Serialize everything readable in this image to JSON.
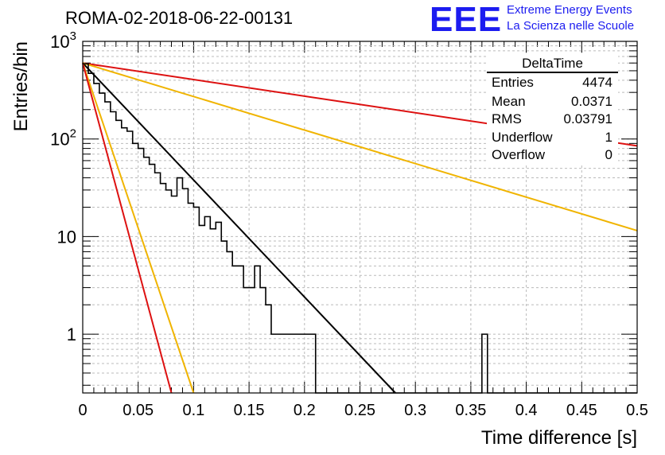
{
  "header": {
    "title": "ROMA-02-2018-06-22-00131",
    "logo_mark": "EEE",
    "logo_line1": "Extreme Energy Events",
    "logo_line2": "La Scienza nelle Scuole"
  },
  "stats_box": {
    "title": "DeltaTime",
    "rows": [
      {
        "key": "Entries",
        "value": "4474"
      },
      {
        "key": "Mean",
        "value": "0.0371"
      },
      {
        "key": "RMS",
        "value": "0.03791"
      },
      {
        "key": "Underflow",
        "value": "1"
      },
      {
        "key": "Overflow",
        "value": "0"
      }
    ]
  },
  "chart_data": {
    "type": "line",
    "title": "ROMA-02-2018-06-22-00131",
    "xlabel": "Time difference [s]",
    "ylabel": "Entries/bin",
    "xlim": [
      0,
      0.5
    ],
    "ylim": [
      0.25,
      1000
    ],
    "yscale": "log",
    "grid": true,
    "x_ticks": [
      "0",
      "0.05",
      "0.1",
      "0.15",
      "0.2",
      "0.25",
      "0.3",
      "0.35",
      "0.4",
      "0.45",
      "0.5"
    ],
    "y_ticks": [
      "1",
      "10",
      "10^2",
      "10^3"
    ],
    "histogram": {
      "name": "DeltaTime",
      "bin_width": 0.005,
      "color": "#000000",
      "counts": [
        590,
        470,
        370,
        295,
        240,
        190,
        155,
        130,
        120,
        90,
        80,
        65,
        55,
        45,
        35,
        30,
        26,
        40,
        31,
        22,
        20,
        13,
        16,
        12,
        14,
        9,
        7,
        5,
        5,
        3,
        3,
        5,
        3,
        2,
        1,
        1,
        1,
        1,
        1,
        1,
        1,
        1,
        0,
        0,
        0,
        0,
        0,
        0,
        0,
        0,
        0,
        0,
        0,
        0,
        0,
        0,
        0,
        0,
        0,
        0,
        0,
        0,
        0,
        0,
        0,
        0,
        0,
        0,
        0,
        0,
        0,
        0,
        1,
        0,
        0,
        0,
        0,
        0,
        0,
        0,
        0,
        0,
        0,
        0,
        0,
        0,
        0,
        0,
        0,
        0,
        0,
        0,
        0,
        0,
        0,
        0,
        0,
        0,
        0,
        0
      ]
    },
    "series": [
      {
        "color": "#000000",
        "x": [
          0,
          0.282
        ],
        "y": [
          600,
          0.25
        ]
      },
      {
        "color": "#dd1111",
        "x": [
          0,
          0.5
        ],
        "y": [
          600,
          85
        ]
      },
      {
        "color": "#f0b400",
        "x": [
          0,
          0.5
        ],
        "y": [
          600,
          11.5
        ]
      },
      {
        "color": "#f0b400",
        "x": [
          0,
          0.1
        ],
        "y": [
          600,
          0.25
        ]
      },
      {
        "color": "#dd1111",
        "x": [
          0,
          0.08
        ],
        "y": [
          600,
          0.25
        ]
      }
    ]
  }
}
